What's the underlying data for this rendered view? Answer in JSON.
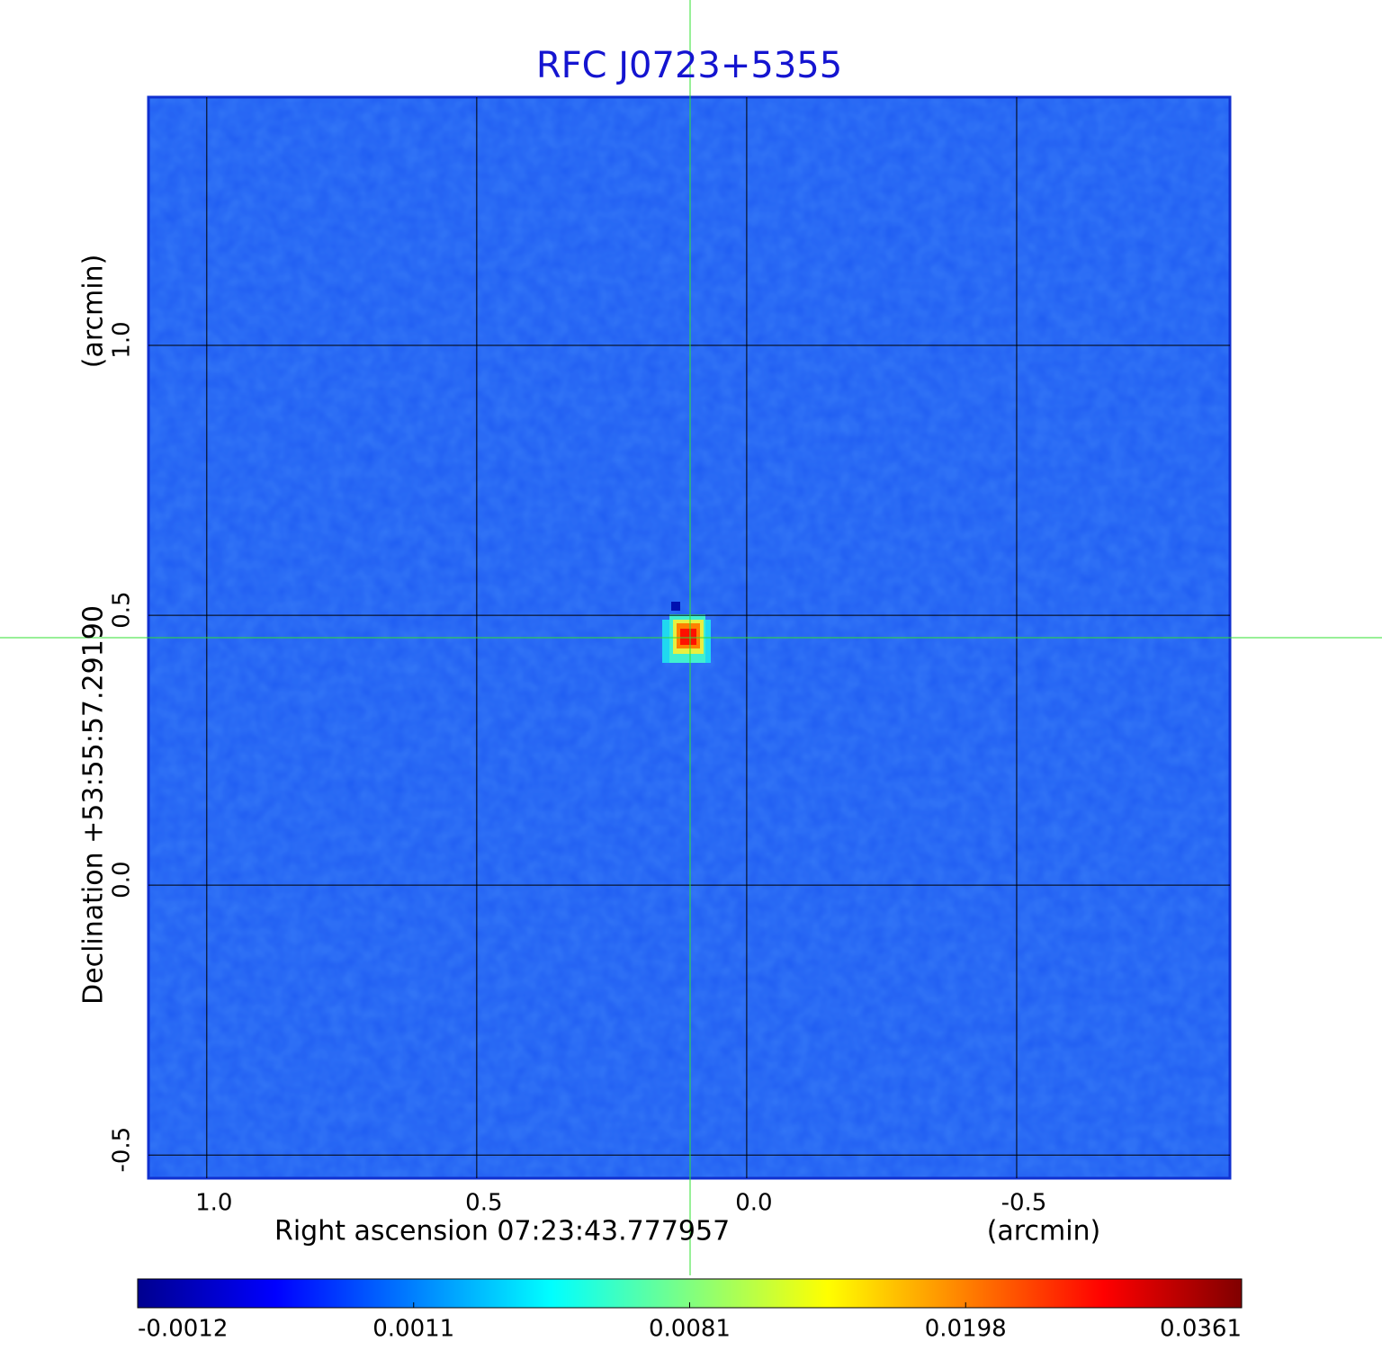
{
  "chart_data": {
    "type": "image",
    "title": "RFC J0723+5355",
    "x_label": "Right ascension  07:23:43.777957",
    "x_unit": "(arcmin)",
    "y_label": "Declination  +53:55:57.29190",
    "y_unit": "(arcmin)",
    "xlim": [
      1.108,
      -0.895
    ],
    "xticks": [
      {
        "value": 1,
        "label": "1.0"
      },
      0.5,
      {
        "value": 0,
        "label": "0.0"
      },
      -0.5
    ],
    "ylim": [
      -0.543,
      1.46
    ],
    "yticks": [
      {
        "value": 1,
        "label": "1.0"
      },
      0.5,
      {
        "value": 0,
        "label": "0.0"
      },
      -0.5
    ],
    "grid": true,
    "colorbar_lim": [
      -0.0012,
      0.0361
    ],
    "colorbar_ticks": [
      -0.0012,
      0.0011,
      0.0081,
      0.0198,
      0.0361
    ],
    "colormap": [
      "#00008f",
      "#0000ff",
      "#0080ff",
      "#00ffff",
      "#80ff80",
      "#ffff00",
      "#ff8000",
      "#ff0000",
      "#800000"
    ]
  }
}
